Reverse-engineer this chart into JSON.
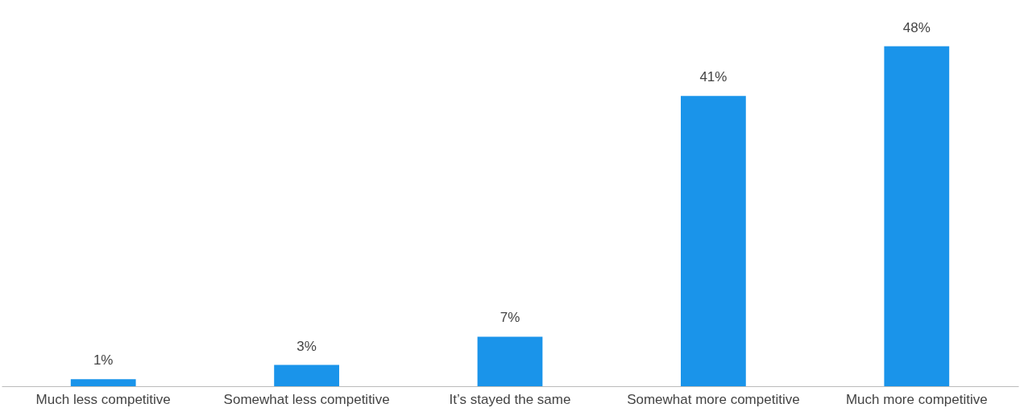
{
  "chart_data": {
    "type": "bar",
    "categories": [
      "Much less competitive",
      "Somewhat less competitive",
      "It’s stayed the same",
      "Somewhat more competitive",
      "Much more competitive"
    ],
    "values": [
      1,
      3,
      7,
      41,
      48
    ],
    "color": "#1a94ea",
    "data_labels": true,
    "value_labels": [
      "1%",
      "3%",
      "7%",
      "41%",
      "48%"
    ],
    "grid": false
  }
}
